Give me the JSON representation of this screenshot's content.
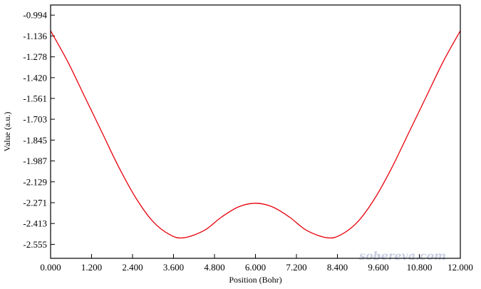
{
  "watermark": "sobereva.com",
  "chart_data": {
    "type": "line",
    "title": "",
    "xlabel": "Position (Bohr)",
    "ylabel": "Value (a.u.)",
    "xlim": [
      0.0,
      12.0
    ],
    "ylim": [
      -2.65,
      -0.925
    ],
    "x_ticks": [
      "0.000",
      "1.200",
      "2.400",
      "3.600",
      "4.800",
      "6.000",
      "7.200",
      "8.400",
      "9.600",
      "10.800",
      "12.000"
    ],
    "y_ticks": [
      "-0.994",
      "-1.136",
      "-1.278",
      "-1.420",
      "-1.561",
      "-1.703",
      "-1.845",
      "-1.987",
      "-2.129",
      "-2.271",
      "-2.413",
      "-2.555"
    ],
    "grid": false,
    "line_color": "#e8000b",
    "series": [
      {
        "x": [
          0.0,
          0.5,
          1.0,
          1.5,
          2.0,
          2.5,
          3.0,
          3.5,
          3.9,
          4.5,
          5.0,
          5.5,
          6.0,
          6.5,
          7.0,
          7.5,
          8.1,
          8.5,
          9.0,
          9.5,
          10.0,
          10.5,
          11.0,
          11.5,
          12.0
        ],
        "y": [
          -1.1,
          -1.31,
          -1.55,
          -1.79,
          -2.03,
          -2.24,
          -2.4,
          -2.49,
          -2.51,
          -2.46,
          -2.37,
          -2.3,
          -2.275,
          -2.3,
          -2.37,
          -2.46,
          -2.51,
          -2.49,
          -2.4,
          -2.24,
          -2.03,
          -1.79,
          -1.55,
          -1.31,
          -1.1
        ]
      }
    ]
  }
}
